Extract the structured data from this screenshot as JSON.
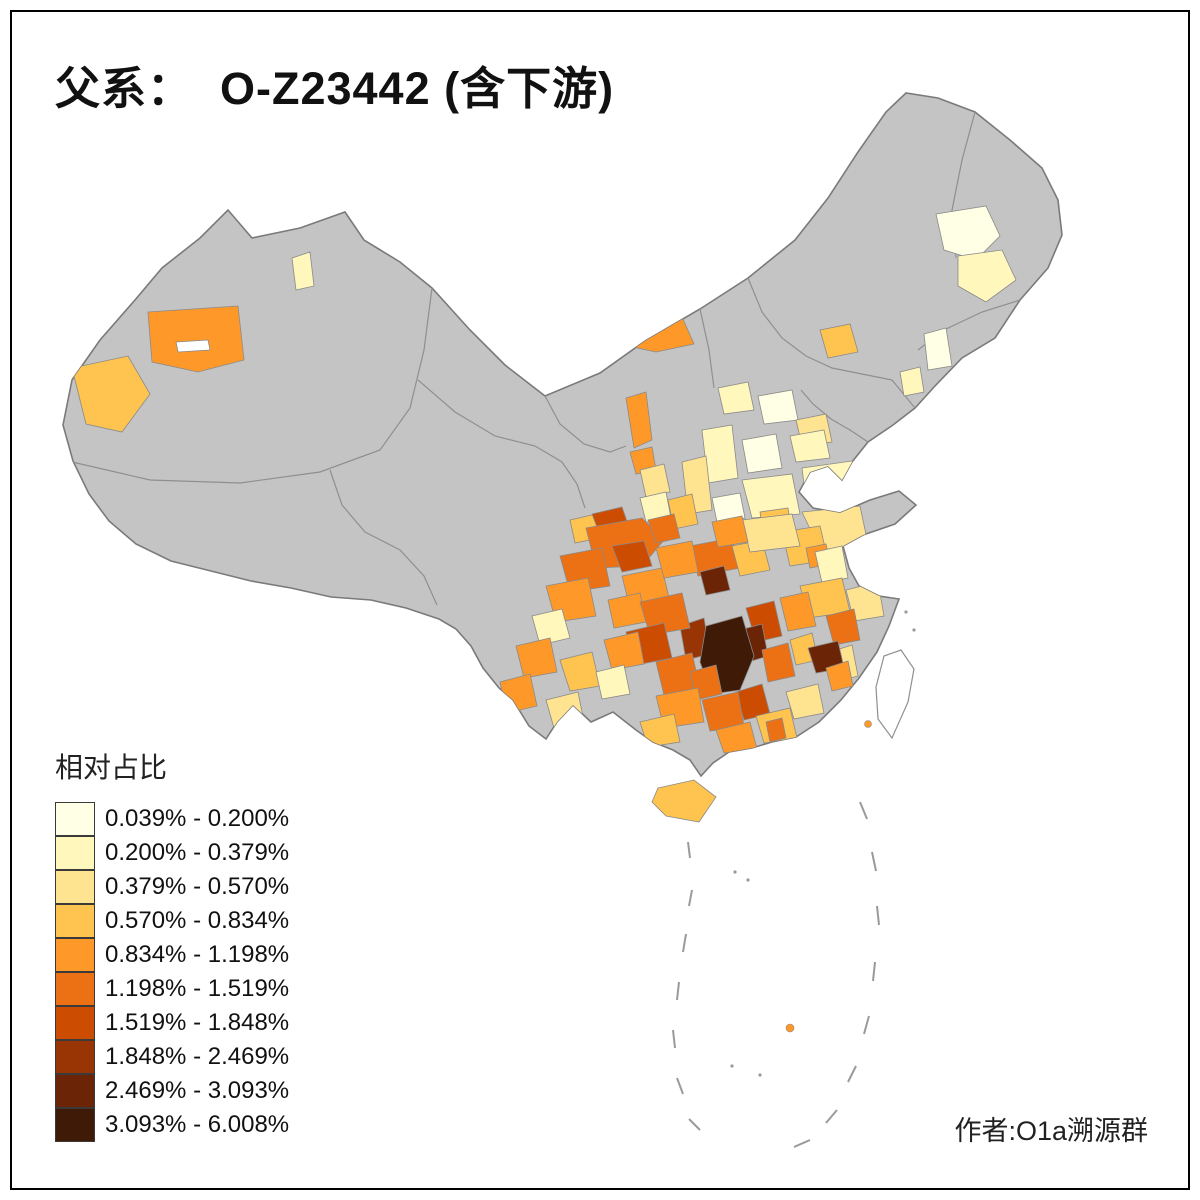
{
  "title": "父系：  O-Z23442 (含下游)",
  "legend": {
    "title": "相对占比",
    "bins": [
      {
        "range": "0.039% - 0.200%",
        "color": "#FFFFE5"
      },
      {
        "range": "0.200% - 0.379%",
        "color": "#FFF7BC"
      },
      {
        "range": "0.379% - 0.570%",
        "color": "#FEE391"
      },
      {
        "range": "0.570% - 0.834%",
        "color": "#FEC44F"
      },
      {
        "range": "0.834% - 1.198%",
        "color": "#FE9929"
      },
      {
        "range": "1.198% - 1.519%",
        "color": "#EC7014"
      },
      {
        "range": "1.519% - 1.848%",
        "color": "#CC4C02"
      },
      {
        "range": "1.848% - 2.469%",
        "color": "#993404"
      },
      {
        "range": "2.469% - 3.093%",
        "color": "#6B2405"
      },
      {
        "range": "3.093% - 6.008%",
        "color": "#3F1A06"
      }
    ]
  },
  "attribution": "作者:O1a溯源群",
  "map": {
    "no_data_color": "#C4C4C4",
    "border_color": "#8F8F8F",
    "outline_color": "#7A7A7A"
  }
}
